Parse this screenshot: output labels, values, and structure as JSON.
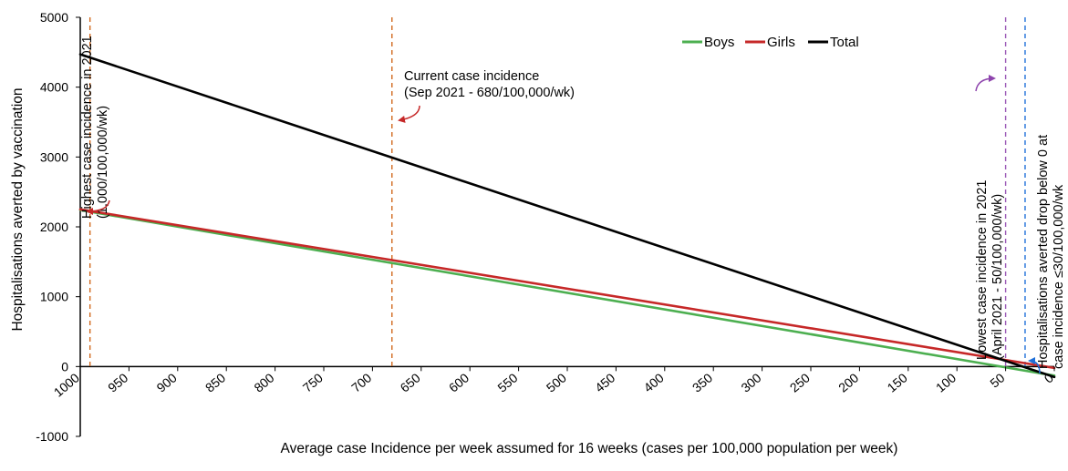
{
  "chart_data": {
    "type": "line",
    "title": "",
    "xlabel": "Average case Incidence per week assumed for 16 weeks  (cases per 100,000 population per week)",
    "ylabel": "Hospitalisations averted by vaccination",
    "xlim": [
      1000,
      0
    ],
    "x_reversed": true,
    "ylim": [
      -1000,
      5000
    ],
    "xticks": [
      1000,
      950,
      900,
      850,
      800,
      750,
      700,
      650,
      600,
      550,
      500,
      450,
      400,
      350,
      300,
      250,
      200,
      150,
      100,
      50,
      0
    ],
    "yticks": [
      -1000,
      0,
      1000,
      2000,
      3000,
      4000,
      5000
    ],
    "grid": false,
    "legend_position": "top-right",
    "series": [
      {
        "name": "Boys",
        "color": "#4caf50",
        "x": [
          1000,
          0
        ],
        "y": [
          2240,
          -130
        ]
      },
      {
        "name": "Girls",
        "color": "#c62828",
        "x": [
          1000,
          0
        ],
        "y": [
          2250,
          -20
        ]
      },
      {
        "name": "Total",
        "color": "#000000",
        "x": [
          1000,
          0
        ],
        "y": [
          4470,
          -150
        ]
      }
    ],
    "reference_lines": [
      {
        "x": 990,
        "color": "#d2691e"
      },
      {
        "x": 680,
        "color": "#d2691e"
      },
      {
        "x": 50,
        "color": "#9b59b6"
      },
      {
        "x": 30,
        "color": "#1e6fd9"
      }
    ],
    "annotations": [
      {
        "lines": [
          "Highest case incidence in 2021",
          "(1,000/100,000/wk)"
        ],
        "rotated": true
      },
      {
        "lines": [
          "Current case incidence",
          "(Sep 2021 - 680/100,000/wk)"
        ],
        "rotated": false
      },
      {
        "lines": [
          "Lowest case incidence in 2021",
          "(April 2021 - 50/100,000/wk)"
        ],
        "rotated": true
      },
      {
        "lines": [
          "Hospitalisations averted drop below 0 at",
          "case incidence ≤30/100,000/wk"
        ],
        "rotated": true
      }
    ]
  }
}
